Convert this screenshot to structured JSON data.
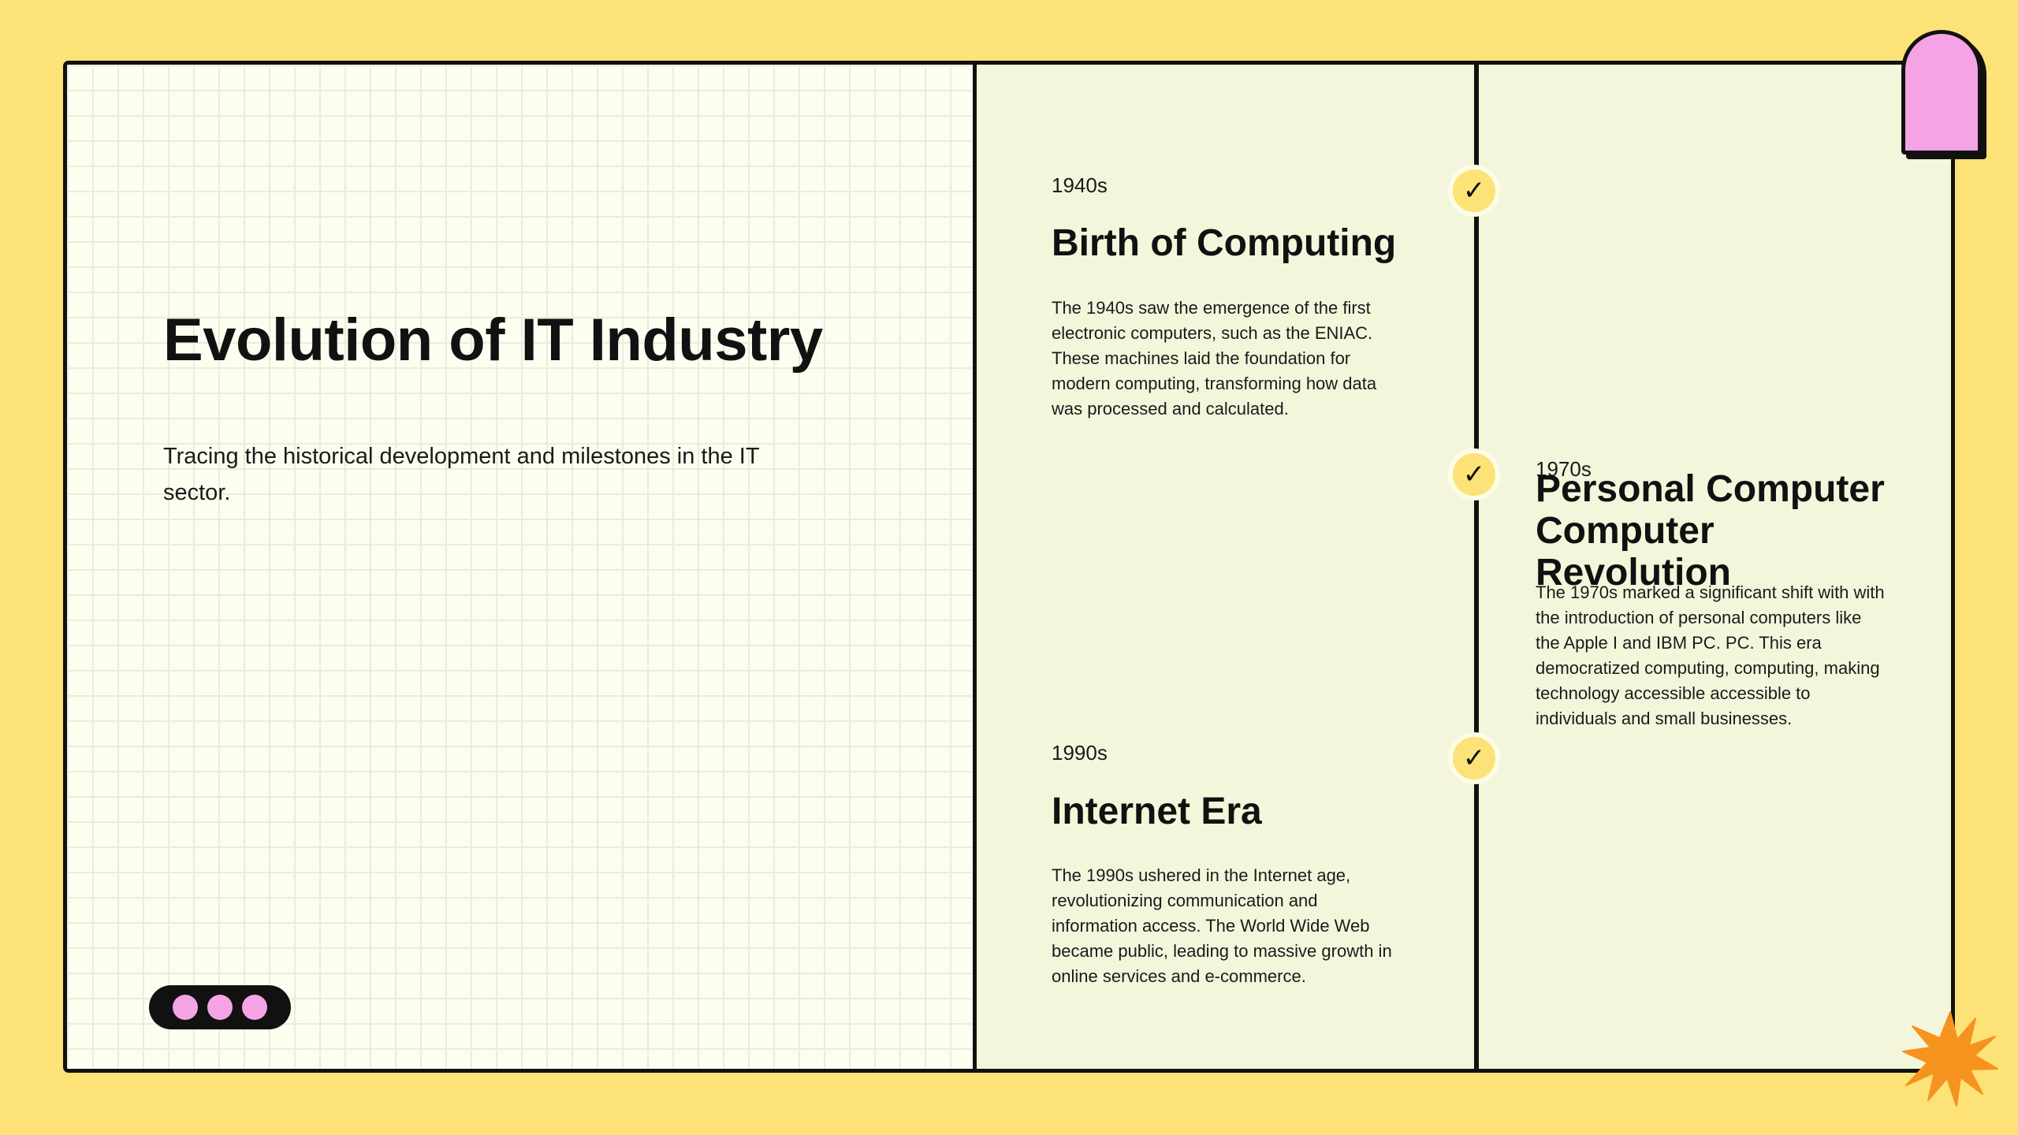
{
  "slide": {
    "title": "Evolution of IT Industry",
    "subtitle": "Tracing the historical development and milestones in the IT sector."
  },
  "timeline": {
    "check_glyph": "✓",
    "events": [
      {
        "year": "1940s",
        "title": "Birth of Computing",
        "description": "The 1940s saw the emergence of the first electronic computers, such as the ENIAC. These machines laid the foundation for modern computing, transforming how data was processed and calculated."
      },
      {
        "year": "1970s",
        "title": "Personal Computer Computer Revolution",
        "description": "The 1970s marked a significant shift with with the introduction of personal computers like the Apple I and IBM PC. PC. This era democratized computing, computing, making technology accessible accessible to individuals and small businesses."
      },
      {
        "year": "1990s",
        "title": "Internet Era",
        "description": "The 1990s ushered in the Internet age, revolutionizing communication and information access. The World Wide Web became public, leading to massive growth in online services and e-commerce."
      }
    ]
  },
  "colors": {
    "background": "#fde278",
    "accent_pink": "#f4a3e4",
    "accent_orange": "#f6921e",
    "panel_left": "#fdfdf0",
    "panel_right": "#f4f6dc",
    "ink": "#111111"
  },
  "icons": [
    "check-icon",
    "pagination-dots-icon",
    "starburst-icon",
    "arch-tab-icon"
  ]
}
